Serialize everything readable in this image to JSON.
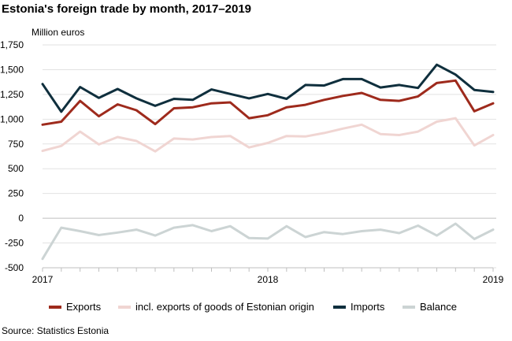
{
  "title": "Estonia's foreign trade by month, 2017–2019",
  "unit_label": "Million euros",
  "source": "Source: Statistics Estonia",
  "chart_data": {
    "type": "line",
    "ylim": [
      -500,
      1750
    ],
    "yticks": [
      -500,
      -250,
      0,
      250,
      500,
      750,
      1000,
      1250,
      1500,
      1750
    ],
    "ytick_labels": [
      "-500",
      "-250",
      "0",
      "250",
      "500",
      "750",
      "1,000",
      "1,250",
      "1,500",
      "1,750"
    ],
    "x_count": 25,
    "xticks": [
      {
        "index": 0,
        "label": "2017"
      },
      {
        "index": 12,
        "label": "2018"
      },
      {
        "index": 24,
        "label": "2019"
      }
    ],
    "grid": "horizontal",
    "legend_position": "bottom",
    "series": [
      {
        "name": "Exports",
        "color": "#9e2a1c",
        "values": [
          945,
          975,
          1185,
          1030,
          1150,
          1090,
          950,
          1110,
          1120,
          1160,
          1170,
          1010,
          1040,
          1120,
          1145,
          1195,
          1235,
          1265,
          1195,
          1185,
          1230,
          1365,
          1390,
          1080,
          1160
        ]
      },
      {
        "name": "incl. exports of goods of Estonian origin",
        "color": "#f0d5d2",
        "values": [
          680,
          730,
          875,
          745,
          820,
          780,
          675,
          805,
          795,
          820,
          830,
          715,
          760,
          830,
          825,
          860,
          905,
          945,
          850,
          840,
          875,
          975,
          1010,
          735,
          840
        ]
      },
      {
        "name": "Imports",
        "color": "#0f2f3d",
        "values": [
          1355,
          1075,
          1325,
          1215,
          1305,
          1210,
          1135,
          1205,
          1195,
          1300,
          1255,
          1210,
          1255,
          1205,
          1345,
          1340,
          1405,
          1405,
          1320,
          1345,
          1315,
          1550,
          1450,
          1295,
          1275
        ]
      },
      {
        "name": "Balance",
        "color": "#ccd4d4",
        "values": [
          -410,
          -95,
          -130,
          -170,
          -145,
          -115,
          -175,
          -95,
          -70,
          -130,
          -80,
          -200,
          -205,
          -80,
          -190,
          -140,
          -160,
          -130,
          -115,
          -150,
          -75,
          -175,
          -55,
          -210,
          -115
        ]
      }
    ]
  }
}
